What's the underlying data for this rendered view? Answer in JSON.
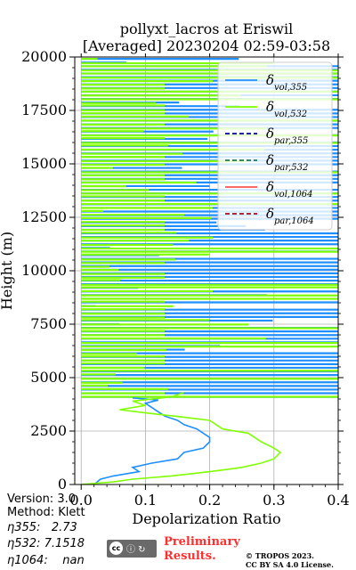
{
  "chart_data": {
    "type": "line",
    "title_line1": "pollyxt_lacros at Eriswil",
    "title_line2": "[Averaged] 20230204 02:59-03:58",
    "xlabel": "Depolarization Ratio",
    "ylabel": "Height (m)",
    "xlim": [
      -0.01,
      0.4
    ],
    "ylim": [
      0,
      20000
    ],
    "xticks": [
      "0.0",
      "0.1",
      "0.2",
      "0.3",
      "0.4"
    ],
    "yticks": [
      "0",
      "2500",
      "5000",
      "7500",
      "10000",
      "12500",
      "15000",
      "17500",
      "20000"
    ],
    "grid": true,
    "legend_placement": "top-right",
    "legend": [
      {
        "symbol": "δ",
        "sub": "vol,355",
        "color": "#1f8fff",
        "dash": "solid"
      },
      {
        "symbol": "δ",
        "sub": "vol,532",
        "color": "#80ff00",
        "dash": "solid"
      },
      {
        "symbol": "δ",
        "sub": "par,355",
        "color": "#0000b0",
        "dash": "dashed"
      },
      {
        "symbol": "δ",
        "sub": "par,532",
        "color": "#1a7a4a",
        "dash": "dashed"
      },
      {
        "symbol": "δ",
        "sub": "vol,1064",
        "color": "#ff5050",
        "dash": "solid"
      },
      {
        "symbol": "δ",
        "sub": "par,1064",
        "color": "#c0001a",
        "dash": "dashed"
      }
    ],
    "series": [
      {
        "name": "δvol,355",
        "color": "#1f8fff",
        "points": [
          [
            0.02,
            0
          ],
          [
            0.03,
            250
          ],
          [
            0.05,
            400
          ],
          [
            0.09,
            600
          ],
          [
            0.08,
            800
          ],
          [
            0.11,
            1000
          ],
          [
            0.15,
            1200
          ],
          [
            0.16,
            1500
          ],
          [
            0.19,
            1700
          ],
          [
            0.2,
            2000
          ],
          [
            0.2,
            2200
          ],
          [
            0.19,
            2400
          ],
          [
            0.18,
            2600
          ],
          [
            0.16,
            2800
          ],
          [
            0.15,
            3000
          ],
          [
            0.13,
            3200
          ],
          [
            0.12,
            3400
          ],
          [
            0.11,
            3600
          ],
          [
            0.1,
            3800
          ],
          [
            0.12,
            3950
          ],
          [
            0.08,
            4050
          ]
        ]
      },
      {
        "name": "δvol,532",
        "color": "#80ff00",
        "points": [
          [
            0.0,
            0
          ],
          [
            0.05,
            120
          ],
          [
            0.08,
            250
          ],
          [
            0.14,
            400
          ],
          [
            0.2,
            600
          ],
          [
            0.25,
            800
          ],
          [
            0.28,
            1000
          ],
          [
            0.3,
            1200
          ],
          [
            0.31,
            1500
          ],
          [
            0.3,
            1700
          ],
          [
            0.28,
            2000
          ],
          [
            0.27,
            2200
          ],
          [
            0.26,
            2400
          ],
          [
            0.22,
            2600
          ],
          [
            0.21,
            2800
          ],
          [
            0.2,
            3000
          ],
          [
            0.16,
            3150
          ],
          [
            0.1,
            3350
          ],
          [
            0.06,
            3500
          ],
          [
            0.1,
            3700
          ],
          [
            0.08,
            3900
          ],
          [
            0.14,
            4100
          ],
          [
            0.16,
            4300
          ]
        ]
      }
    ],
    "noise_bars": {
      "y_min": 4100,
      "y_max": 19950,
      "step": 170,
      "blue_color": "#1f8fff",
      "green_color": "#80ff00"
    }
  },
  "info": {
    "version": "Version: 3.0",
    "method": "Method: Klett",
    "eta355": "η355:   2.73",
    "eta532": "η532: 7.1518",
    "eta1064": "η1064:    nan"
  },
  "footer": {
    "license_badge": "cc by sa",
    "preliminary_line1": "Preliminary",
    "preliminary_line2": "Results.",
    "credit_line1": "© TROPOS 2023.",
    "credit_line2": "CC BY SA 4.0 License."
  }
}
